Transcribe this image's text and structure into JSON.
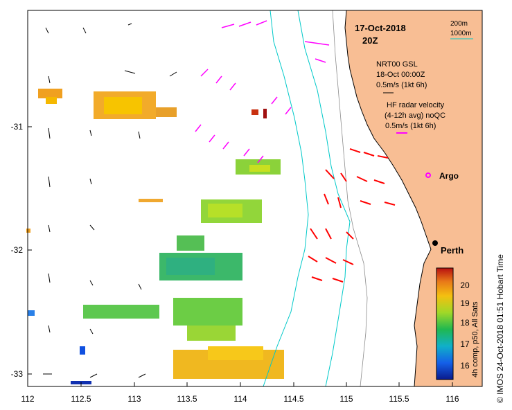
{
  "title": {
    "date": "17-Oct-2018",
    "time": "20Z"
  },
  "depth_legend": {
    "line1": "200m",
    "line2": "1000m",
    "color1": "#8a8a8a",
    "color2": "#00c9c9"
  },
  "wind_legend": {
    "label1": "NRT00 GSL",
    "label2": "18-Oct 00:00Z",
    "scale": "0.5m/s (1kt 6h)"
  },
  "radar_legend": {
    "label1": "HF radar velocity",
    "label2": "(4-12h avg) noQC",
    "scale": "0.5m/s (1kt 6h)"
  },
  "places": {
    "argo": "Argo",
    "perth": "Perth"
  },
  "colorbar": {
    "label": "4h comp, p50, All Sats",
    "ticks": [
      "16",
      "17",
      "18",
      "19",
      "20"
    ],
    "min": 15.4,
    "max": 20.6
  },
  "axes": {
    "x_ticks": [
      "112",
      "112.5",
      "113",
      "113.5",
      "114",
      "114.5",
      "115",
      "115.5",
      "116"
    ],
    "y_ticks": [
      "-31",
      "-32",
      "-33"
    ],
    "xlim": [
      112,
      116.3
    ],
    "ylim": [
      -33.1,
      -30.05
    ]
  },
  "credit": "© IMOS 24-Oct-2018 01:51 Hobart Time",
  "colors": {
    "land": "#f8be94",
    "radar": "#ff0000",
    "model": "#ff00ff",
    "arrow": "#000000"
  }
}
